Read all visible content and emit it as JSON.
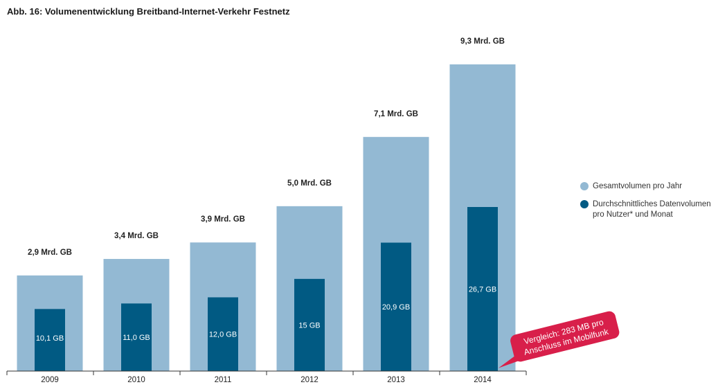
{
  "title": "Abb. 16: Volumenentwicklung Breitband-Internet-Verkehr Festnetz",
  "colors": {
    "total": "#93b9d3",
    "avg": "#015a83",
    "callout": "#d81f4a",
    "axis": "#333333"
  },
  "chart_data": {
    "type": "bar",
    "categories": [
      "2009",
      "2010",
      "2011",
      "2012",
      "2013",
      "2014"
    ],
    "series": [
      {
        "name": "Gesamtvolumen pro Jahr",
        "unit": "Mrd. GB",
        "values": [
          2.9,
          3.4,
          3.9,
          5.0,
          7.1,
          9.3
        ],
        "labels": [
          "2,9 Mrd. GB",
          "3,4 Mrd. GB",
          "3,9 Mrd. GB",
          "5,0 Mrd. GB",
          "7,1 Mrd. GB",
          "9,3 Mrd. GB"
        ]
      },
      {
        "name": "Durchschnittliches Datenvolumen pro Nutzer* und Monat",
        "unit": "GB",
        "values": [
          10.1,
          11.0,
          12.0,
          15,
          20.9,
          26.7
        ],
        "labels": [
          "10,1 GB",
          "11,0 GB",
          "12,0 GB",
          "15 GB",
          "20,9 GB",
          "26,7 GB"
        ]
      }
    ],
    "legend_position": "right",
    "grid": false,
    "annotation": {
      "line1": "Vergleich: 283 MB pro",
      "line2": "Anschluss im Mobilfunk",
      "category": "2014"
    }
  },
  "legend": [
    {
      "label": "Gesamtvolumen pro Jahr"
    },
    {
      "label": "Durchschnittliches Datenvolumen pro Nutzer* und Monat",
      "line1": "Durchschnittliches Datenvolumen",
      "line2": "pro Nutzer* und Monat"
    }
  ]
}
